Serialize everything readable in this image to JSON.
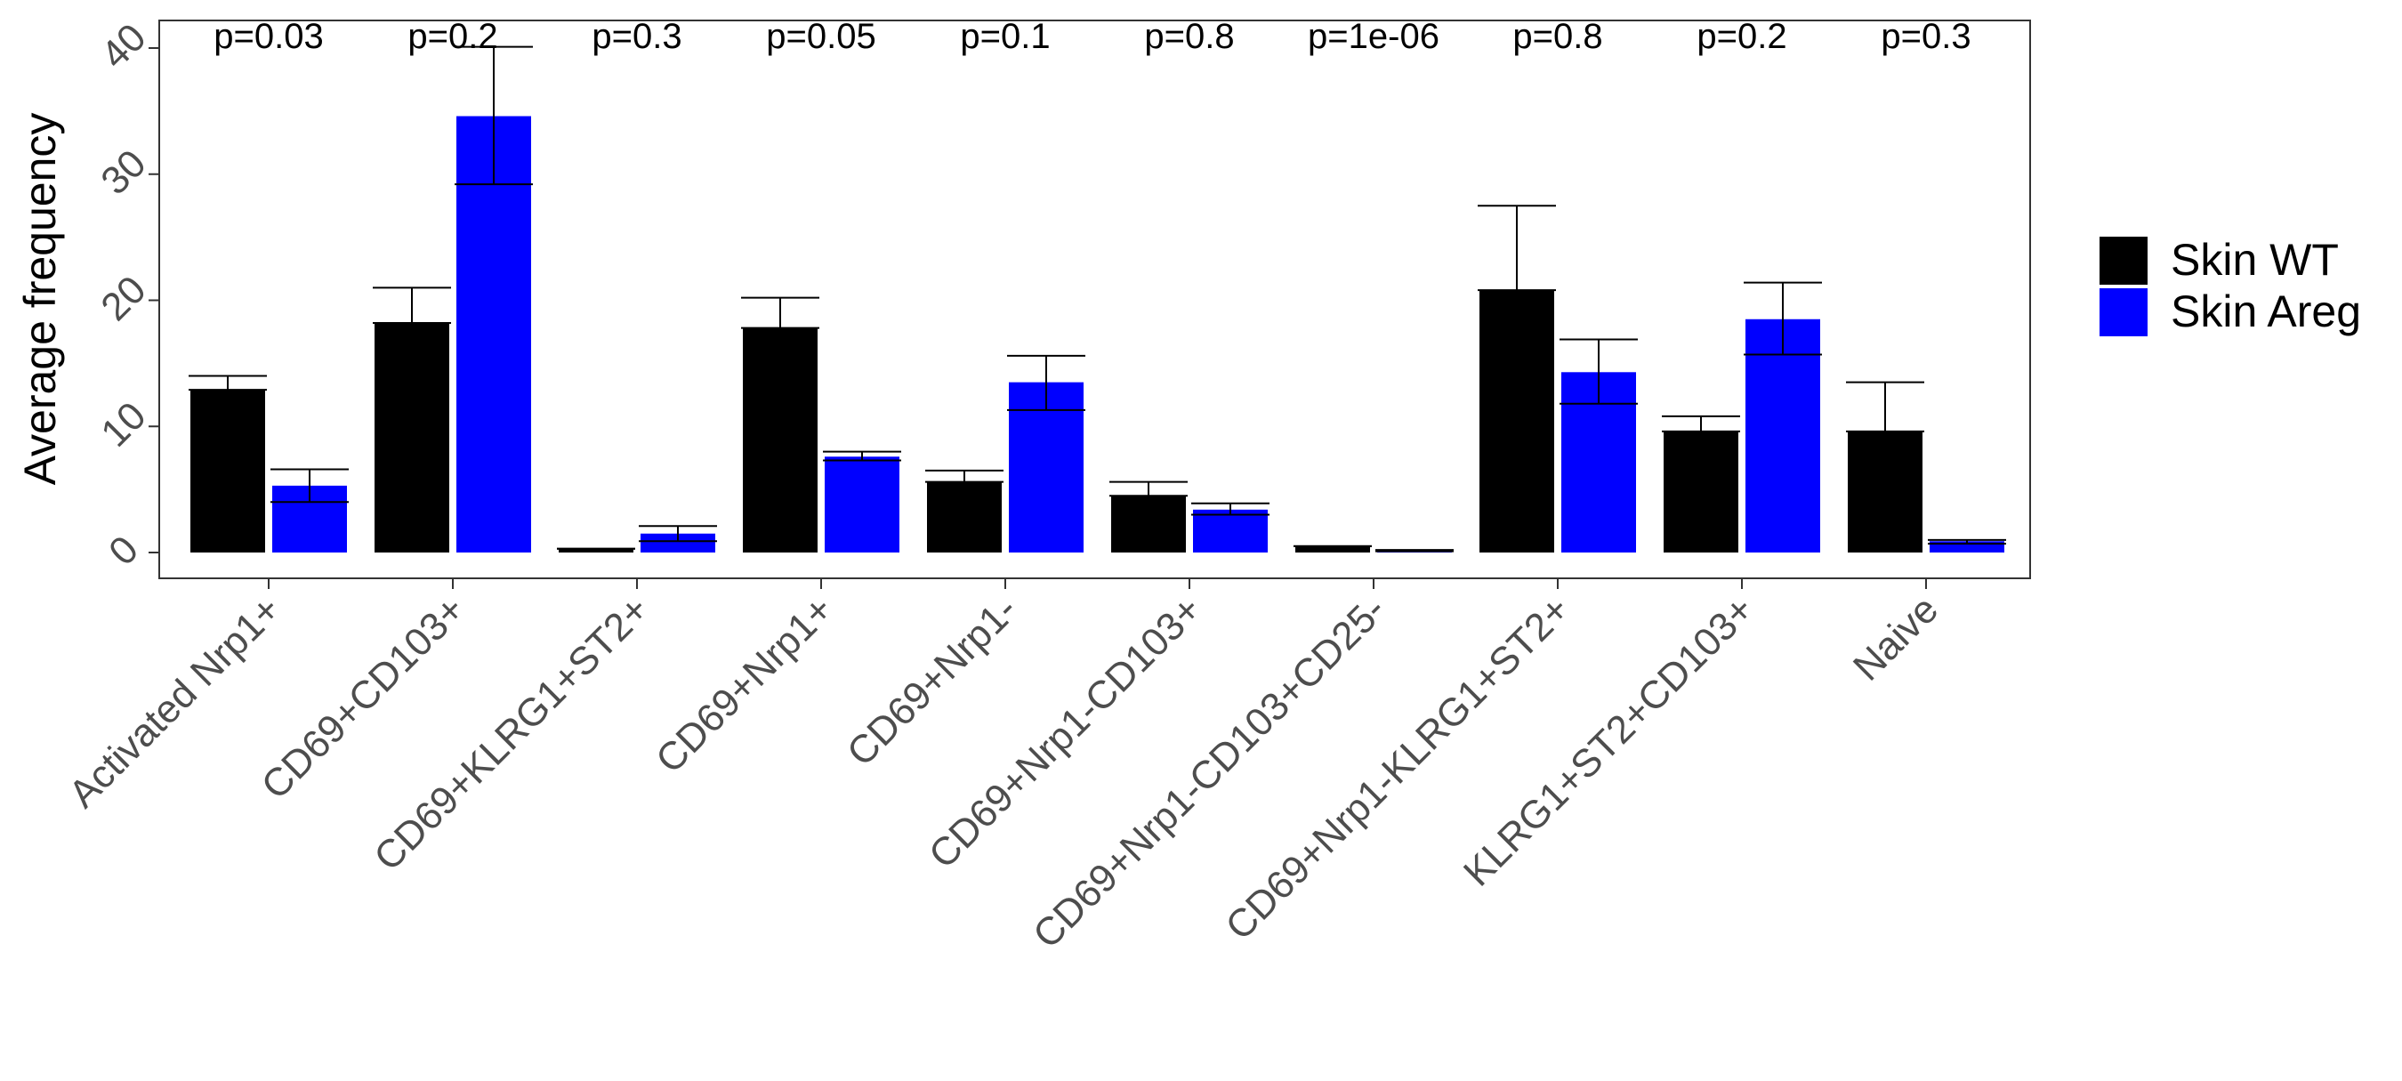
{
  "chart_data": {
    "type": "bar",
    "ylabel": "Average frequency",
    "xlabel": "",
    "title": "",
    "ylim": [
      -2,
      42
    ],
    "yticks": [
      0,
      10,
      20,
      30,
      40
    ],
    "legend_position": "right",
    "grid": false,
    "categories": [
      "Activated Nrp1+",
      "CD69+CD103+",
      "CD69+KLRG1+ST2+",
      "CD69+Nrp1+",
      "CD69+Nrp1-",
      "CD69+Nrp1-CD103+",
      "CD69+Nrp1-CD103+CD25-",
      "CD69+Nrp1-KLRG1+ST2+",
      "KLRG1+ST2+CD103+",
      "Naive"
    ],
    "pvalues": [
      "p=0.03",
      "p=0.2",
      "p=0.3",
      "p=0.05",
      "p=0.1",
      "p=0.8",
      "p=1e-06",
      "p=0.8",
      "p=0.2",
      "p=0.3"
    ],
    "series": [
      {
        "name": "Skin WT",
        "color": "#000000",
        "values": [
          12.9,
          18.2,
          0.3,
          17.8,
          5.6,
          4.5,
          0.5,
          20.8,
          9.6,
          9.6
        ],
        "error_low": [
          12.9,
          18.2,
          0.3,
          17.8,
          5.6,
          4.5,
          0.5,
          20.8,
          9.6,
          9.6
        ],
        "error_high": [
          14.0,
          21.0,
          0.3,
          20.2,
          6.5,
          5.6,
          0.5,
          27.5,
          10.8,
          13.5
        ]
      },
      {
        "name": "Skin Areg",
        "color": "#0000ff",
        "values": [
          5.3,
          34.6,
          1.5,
          7.6,
          13.5,
          3.4,
          0.15,
          14.3,
          18.5,
          0.9
        ],
        "error_low": [
          4.0,
          29.2,
          0.9,
          7.3,
          11.3,
          3.0,
          0.1,
          11.8,
          15.7,
          0.7
        ],
        "error_high": [
          6.6,
          40.1,
          2.1,
          8.0,
          15.6,
          3.9,
          0.2,
          16.9,
          21.4,
          1.0
        ]
      }
    ]
  }
}
